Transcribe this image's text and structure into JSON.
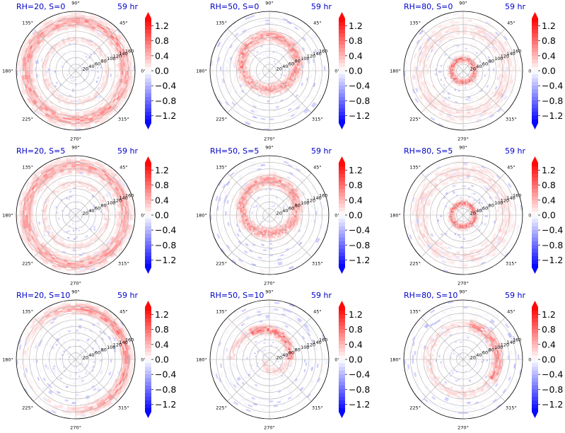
{
  "figure": {
    "colormap": "bwr",
    "colors": {
      "blue": "#0000ff",
      "white": "#ffffff",
      "red": "#ff0000",
      "title": "#0000cc"
    }
  },
  "chart_data": [
    {
      "type": "polar-heatmap",
      "title": "RH=20, S=0",
      "time_label": "59 hr",
      "rh": 20,
      "s": 0,
      "pattern": "outer-ring"
    },
    {
      "type": "polar-heatmap",
      "title": "RH=50, S=0",
      "time_label": "59 hr",
      "rh": 50,
      "s": 0,
      "pattern": "mid-ring"
    },
    {
      "type": "polar-heatmap",
      "title": "RH=80, S=0",
      "time_label": "59 hr",
      "rh": 80,
      "s": 0,
      "pattern": "inner-ring"
    },
    {
      "type": "polar-heatmap",
      "title": "RH=20, S=5",
      "time_label": "59 hr",
      "rh": 20,
      "s": 5,
      "pattern": "outer-ring"
    },
    {
      "type": "polar-heatmap",
      "title": "RH=50, S=5",
      "time_label": "59 hr",
      "rh": 50,
      "s": 5,
      "pattern": "mid-ring"
    },
    {
      "type": "polar-heatmap",
      "title": "RH=80, S=5",
      "time_label": "59 hr",
      "rh": 80,
      "s": 5,
      "pattern": "inner-ring"
    },
    {
      "type": "polar-heatmap",
      "title": "RH=20, S=10",
      "time_label": "59 hr",
      "rh": 20,
      "s": 10,
      "pattern": "outer-arc"
    },
    {
      "type": "polar-heatmap",
      "title": "RH=50, S=10",
      "time_label": "59 hr",
      "rh": 50,
      "s": 10,
      "pattern": "spiral-arc"
    },
    {
      "type": "polar-heatmap",
      "title": "RH=80, S=10",
      "time_label": "59 hr",
      "rh": 80,
      "s": 10,
      "pattern": "upper-right-arc"
    }
  ],
  "shared_axes": {
    "r_max": 180,
    "r_ticks": [
      20,
      40,
      60,
      80,
      100,
      120,
      140,
      160
    ],
    "theta_ticks": [
      "0°",
      "45°",
      "90°",
      "135°",
      "180°",
      "225°",
      "270°",
      "315°"
    ],
    "theta_values": [
      0,
      45,
      90,
      135,
      180,
      225,
      270,
      315
    ]
  },
  "colorbar": {
    "vmin": -1.4,
    "vmax": 1.4,
    "levels": 28,
    "ticks": [
      1.2,
      0.8,
      0.4,
      0.0,
      -0.4,
      -0.8,
      -1.2
    ],
    "tick_labels": [
      "1.2",
      "0.8",
      "0.4",
      "0.0",
      "−0.4",
      "−0.8",
      "−1.2"
    ],
    "extend": "both"
  }
}
